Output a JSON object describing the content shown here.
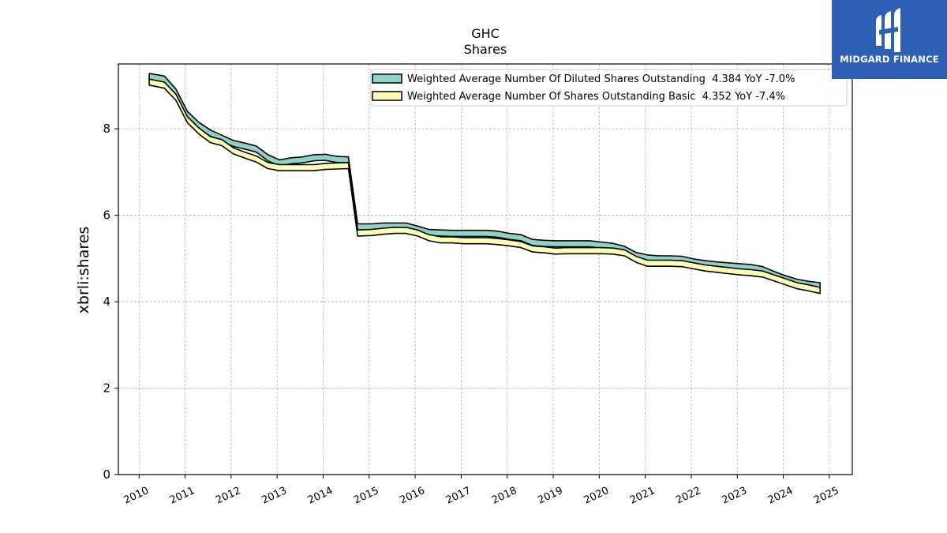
{
  "chart_data": {
    "type": "area",
    "title": "GHC",
    "subtitle": "Shares",
    "xlabel": "",
    "ylabel": "xbrli:shares",
    "xlim": [
      2009.55,
      2025.5
    ],
    "ylim": [
      0,
      9.5
    ],
    "x_ticks": [
      2010,
      2011,
      2012,
      2013,
      2014,
      2015,
      2016,
      2017,
      2018,
      2019,
      2020,
      2021,
      2022,
      2023,
      2024,
      2025
    ],
    "y_ticks": [
      0,
      2,
      4,
      6,
      8
    ],
    "grid": true,
    "legend_position": "top-right",
    "series": [
      {
        "name": "Weighted Average Number Of Diluted Shares Outstanding  4.384 YoY -7.0%",
        "color": "#8dd3c7",
        "x": [
          2010.22,
          2010.55,
          2010.8,
          2011.05,
          2011.3,
          2011.55,
          2011.8,
          2012.05,
          2012.3,
          2012.55,
          2012.8,
          2013.05,
          2013.3,
          2013.55,
          2013.8,
          2014.05,
          2014.3,
          2014.55,
          2014.75,
          2015.05,
          2015.3,
          2015.55,
          2015.8,
          2016.05,
          2016.3,
          2016.55,
          2016.8,
          2017.05,
          2017.3,
          2017.55,
          2017.8,
          2018.05,
          2018.3,
          2018.55,
          2018.8,
          2019.05,
          2019.3,
          2019.55,
          2019.8,
          2020.05,
          2020.3,
          2020.55,
          2020.8,
          2021.05,
          2021.3,
          2021.55,
          2021.8,
          2022.05,
          2022.3,
          2022.55,
          2022.8,
          2023.05,
          2023.3,
          2023.55,
          2023.8,
          2024.05,
          2024.3,
          2024.55,
          2024.8
        ],
        "values": [
          9.28,
          9.22,
          8.92,
          8.4,
          8.15,
          7.97,
          7.85,
          7.73,
          7.67,
          7.6,
          7.4,
          7.28,
          7.33,
          7.35,
          7.4,
          7.41,
          7.36,
          7.35,
          5.8,
          5.8,
          5.82,
          5.82,
          5.82,
          5.75,
          5.67,
          5.66,
          5.65,
          5.65,
          5.65,
          5.65,
          5.63,
          5.58,
          5.55,
          5.44,
          5.42,
          5.41,
          5.41,
          5.41,
          5.41,
          5.38,
          5.35,
          5.28,
          5.14,
          5.08,
          5.06,
          5.06,
          5.05,
          4.99,
          4.95,
          4.92,
          4.9,
          4.88,
          4.86,
          4.81,
          4.7,
          4.6,
          4.52,
          4.47,
          4.44
        ]
      },
      {
        "name": "Weighted Average Number Of Shares Outstanding Basic  4.352 YoY -7.4%",
        "color": "#ffffb3",
        "x": [
          2010.22,
          2010.55,
          2010.8,
          2011.05,
          2011.3,
          2011.55,
          2011.8,
          2012.05,
          2012.3,
          2012.55,
          2012.8,
          2013.05,
          2013.3,
          2013.55,
          2013.8,
          2014.05,
          2014.3,
          2014.55,
          2014.75,
          2015.05,
          2015.3,
          2015.55,
          2015.8,
          2016.05,
          2016.3,
          2016.55,
          2016.8,
          2017.05,
          2017.3,
          2017.55,
          2017.8,
          2018.05,
          2018.3,
          2018.55,
          2018.8,
          2019.05,
          2019.3,
          2019.55,
          2019.8,
          2020.05,
          2020.3,
          2020.55,
          2020.8,
          2021.05,
          2021.3,
          2021.55,
          2021.8,
          2022.05,
          2022.3,
          2022.55,
          2022.8,
          2023.05,
          2023.3,
          2023.55,
          2023.8,
          2024.05,
          2024.3,
          2024.55,
          2024.8
        ],
        "values": [
          9.15,
          9.08,
          8.8,
          8.28,
          8.02,
          7.82,
          7.75,
          7.56,
          7.46,
          7.37,
          7.22,
          7.17,
          7.17,
          7.17,
          7.17,
          7.2,
          7.21,
          7.22,
          5.66,
          5.67,
          5.7,
          5.72,
          5.72,
          5.66,
          5.55,
          5.5,
          5.5,
          5.48,
          5.48,
          5.48,
          5.46,
          5.43,
          5.39,
          5.29,
          5.27,
          5.24,
          5.25,
          5.25,
          5.25,
          5.25,
          5.24,
          5.2,
          5.05,
          4.96,
          4.96,
          4.96,
          4.95,
          4.9,
          4.85,
          4.82,
          4.79,
          4.76,
          4.74,
          4.71,
          4.62,
          4.53,
          4.44,
          4.39,
          4.33
        ]
      }
    ]
  },
  "logo": {
    "text": "MIDGARD FINANCE",
    "icon": "midgard-finance-logo-icon",
    "background": "#2d5fb4"
  }
}
